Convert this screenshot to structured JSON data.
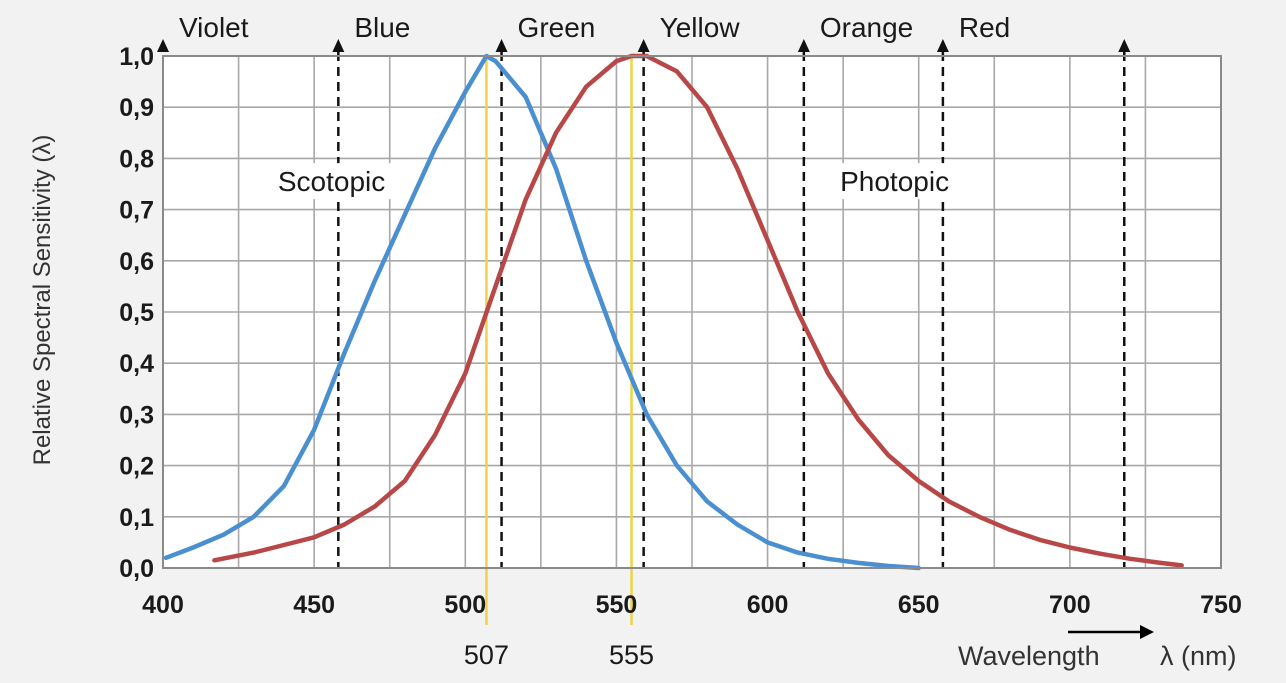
{
  "chart_data": {
    "type": "line",
    "title": "",
    "xlabel": "Wavelength",
    "xlabel_symbol": "λ (nm)",
    "ylabel": "Relative Spectral Sensitivity (λ)",
    "xlim": [
      400,
      750
    ],
    "ylim": [
      0,
      1.0
    ],
    "x_ticks": [
      400,
      450,
      500,
      550,
      600,
      650,
      700,
      750
    ],
    "y_ticks": [
      0,
      0.1,
      0.2,
      0.3,
      0.4,
      0.5,
      0.6,
      0.7,
      0.8,
      0.9,
      1.0
    ],
    "y_tick_labels": [
      "0,0",
      "0,1",
      "0,2",
      "0,3",
      "0,4",
      "0,5",
      "0,6",
      "0,7",
      "0,8",
      "0,9",
      "1,0"
    ],
    "grid": true,
    "series": [
      {
        "name": "Scotopic",
        "color": "#4a8fd0",
        "points": [
          [
            401,
            0.02
          ],
          [
            410,
            0.04
          ],
          [
            420,
            0.065
          ],
          [
            430,
            0.1
          ],
          [
            440,
            0.16
          ],
          [
            450,
            0.27
          ],
          [
            460,
            0.42
          ],
          [
            470,
            0.56
          ],
          [
            480,
            0.69
          ],
          [
            490,
            0.82
          ],
          [
            500,
            0.93
          ],
          [
            507,
            1.0
          ],
          [
            510,
            0.99
          ],
          [
            520,
            0.92
          ],
          [
            530,
            0.78
          ],
          [
            540,
            0.6
          ],
          [
            550,
            0.44
          ],
          [
            560,
            0.3
          ],
          [
            570,
            0.2
          ],
          [
            580,
            0.13
          ],
          [
            590,
            0.085
          ],
          [
            600,
            0.05
          ],
          [
            610,
            0.03
          ],
          [
            620,
            0.018
          ],
          [
            630,
            0.01
          ],
          [
            640,
            0.004
          ],
          [
            650,
            0.0
          ]
        ]
      },
      {
        "name": "Photopic",
        "color": "#b84848",
        "points": [
          [
            417,
            0.015
          ],
          [
            430,
            0.03
          ],
          [
            440,
            0.045
          ],
          [
            450,
            0.06
          ],
          [
            460,
            0.085
          ],
          [
            470,
            0.12
          ],
          [
            480,
            0.17
          ],
          [
            490,
            0.26
          ],
          [
            500,
            0.38
          ],
          [
            510,
            0.55
          ],
          [
            520,
            0.72
          ],
          [
            530,
            0.85
          ],
          [
            540,
            0.94
          ],
          [
            550,
            0.99
          ],
          [
            555,
            1.0
          ],
          [
            560,
            1.0
          ],
          [
            570,
            0.97
          ],
          [
            580,
            0.9
          ],
          [
            590,
            0.78
          ],
          [
            600,
            0.64
          ],
          [
            610,
            0.5
          ],
          [
            620,
            0.38
          ],
          [
            630,
            0.29
          ],
          [
            640,
            0.22
          ],
          [
            650,
            0.17
          ],
          [
            660,
            0.13
          ],
          [
            670,
            0.1
          ],
          [
            680,
            0.075
          ],
          [
            690,
            0.055
          ],
          [
            700,
            0.04
          ],
          [
            710,
            0.028
          ],
          [
            720,
            0.018
          ],
          [
            730,
            0.01
          ],
          [
            737,
            0.005
          ]
        ]
      }
    ],
    "color_bands": [
      {
        "label": "Violet",
        "x": 400
      },
      {
        "label": "Blue",
        "x": 458
      },
      {
        "label": "Green",
        "x": 512
      },
      {
        "label": "Yellow",
        "x": 559
      },
      {
        "label": "Orange",
        "x": 612
      },
      {
        "label": "Red",
        "x": 658
      },
      {
        "label": "",
        "x": 718
      }
    ],
    "peak_markers": [
      {
        "value": 507,
        "label": "507",
        "color": "#f0d248"
      },
      {
        "value": 555,
        "label": "555",
        "color": "#f0d248"
      }
    ],
    "annotations": [
      {
        "text": "Scotopic",
        "x": 438,
        "y": 0.74
      },
      {
        "text": "Photopic",
        "x": 624,
        "y": 0.74
      }
    ]
  }
}
